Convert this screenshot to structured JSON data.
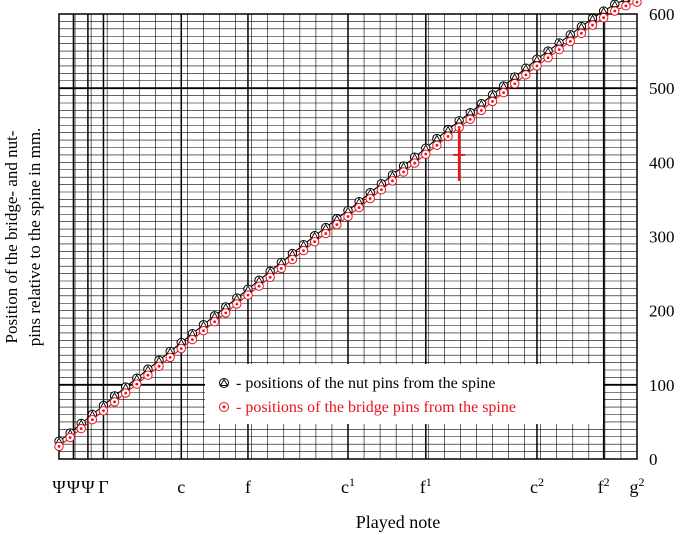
{
  "chart_data": {
    "type": "scatter",
    "title": "",
    "xlabel": "Played note",
    "ylabel_line1": "Position of the bridge- and nut-",
    "ylabel_line2": "pins relative to the spine in mm.",
    "ylim": [
      0,
      600
    ],
    "xlim": [
      0,
      52
    ],
    "y_ticks": [
      "0",
      "100",
      "200",
      "300",
      "400",
      "500",
      "600"
    ],
    "y_tick_values": [
      0,
      100,
      200,
      300,
      400,
      500,
      600
    ],
    "x_ticks": [
      {
        "note": "Ψ",
        "x": 0
      },
      {
        "note": "Ψ",
        "x": 1.3
      },
      {
        "note": "Ψ",
        "x": 2.6
      },
      {
        "note": "Γ",
        "x": 4
      },
      {
        "note": "c",
        "x": 11
      },
      {
        "note": "f",
        "x": 17
      },
      {
        "note": "c",
        "sup": "1",
        "x": 26
      },
      {
        "note": "f",
        "sup": "1",
        "x": 33
      },
      {
        "note": "c",
        "sup": "2",
        "x": 43
      },
      {
        "note": "f",
        "sup": "2",
        "x": 49
      },
      {
        "note": "g",
        "sup": "2",
        "x": 52
      }
    ],
    "legend_position": "lower-right",
    "series": [
      {
        "name": "- positions of the nut pins from the spine",
        "color": "#000000",
        "marker": "triangle-in-circle",
        "x": [
          0,
          1,
          2,
          3,
          4,
          5,
          6,
          7,
          8,
          9,
          10,
          11,
          12,
          13,
          14,
          15,
          16,
          17,
          18,
          19,
          20,
          21,
          22,
          23,
          24,
          25,
          26,
          27,
          28,
          29,
          30,
          31,
          32,
          33,
          34,
          35,
          36,
          37,
          38,
          39,
          40,
          41,
          42,
          43,
          44,
          45,
          46,
          47,
          48,
          49,
          50,
          51,
          52
        ],
        "values": [
          24,
          35,
          48,
          60,
          72,
          85,
          97,
          109,
          121,
          133,
          145,
          157,
          169,
          181,
          193,
          205,
          217,
          229,
          241,
          253,
          265,
          277,
          289,
          301,
          312,
          324,
          335,
          347,
          359,
          371,
          383,
          395,
          407,
          419,
          432,
          444,
          456,
          467,
          479,
          491,
          503,
          515,
          527,
          539,
          550,
          561,
          572,
          583,
          594,
          604,
          613,
          620,
          626
        ]
      },
      {
        "name": "- positions of the bridge pins from the spine",
        "color": "#e8141b",
        "marker": "dot-in-circle",
        "x": [
          0,
          1,
          2,
          3,
          4,
          5,
          6,
          7,
          8,
          9,
          10,
          11,
          12,
          13,
          14,
          15,
          16,
          17,
          18,
          19,
          20,
          21,
          22,
          23,
          24,
          25,
          26,
          27,
          28,
          29,
          30,
          31,
          32,
          33,
          34,
          35,
          36,
          37,
          38,
          39,
          40,
          41,
          42,
          43,
          44,
          45,
          46,
          47,
          48,
          49,
          50,
          51,
          52
        ],
        "values": [
          17,
          29,
          41,
          53,
          65,
          77,
          89,
          101,
          113,
          125,
          137,
          149,
          161,
          173,
          185,
          197,
          209,
          221,
          233,
          245,
          257,
          269,
          281,
          293,
          304,
          316,
          327,
          339,
          351,
          363,
          375,
          387,
          399,
          411,
          423,
          435,
          447,
          458,
          470,
          482,
          494,
          506,
          518,
          530,
          541,
          552,
          563,
          574,
          585,
          595,
          604,
          611,
          616
        ]
      }
    ],
    "annotations": [
      {
        "type": "red-marker",
        "x": 36,
        "y": 410
      }
    ],
    "grid": true
  }
}
